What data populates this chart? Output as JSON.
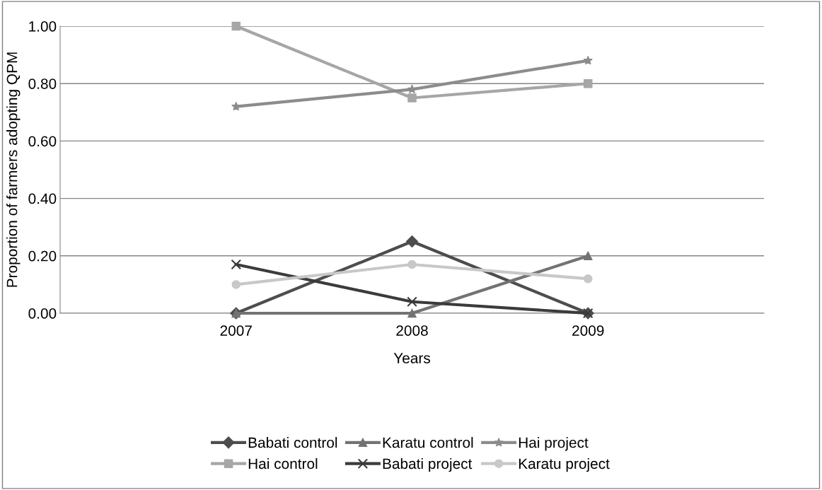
{
  "chart_data": {
    "type": "line",
    "xlabel": "Years",
    "ylabel": "Proportion of farmers adopting QPM",
    "categories": [
      "2007",
      "2008",
      "2009"
    ],
    "ylim": [
      0,
      1
    ],
    "yticks": [
      {
        "value": 0,
        "label": "0.00"
      },
      {
        "value": 0.2,
        "label": "0.20"
      },
      {
        "value": 0.4,
        "label": "0.40"
      },
      {
        "value": 0.6,
        "label": "0.60"
      },
      {
        "value": 0.8,
        "label": "0.80"
      },
      {
        "value": 1.0,
        "label": "1.00"
      }
    ],
    "grid": "y",
    "legend": "bottom",
    "series": [
      {
        "name": "Babati control",
        "color": "#4d4d4d",
        "marker": "diamond",
        "values": [
          0,
          0.25,
          0
        ]
      },
      {
        "name": "Hai control",
        "color": "#a6a6a6",
        "marker": "square",
        "values": [
          1.0,
          0.75,
          0.8
        ]
      },
      {
        "name": "Karatu control",
        "color": "#737373",
        "marker": "triangle",
        "values": [
          0,
          0,
          0.2
        ]
      },
      {
        "name": "Babati project",
        "color": "#3b3b3b",
        "marker": "cross",
        "values": [
          0.17,
          0.04,
          0
        ]
      },
      {
        "name": "Hai project",
        "color": "#8c8c8c",
        "marker": "star",
        "values": [
          0.72,
          0.78,
          0.88
        ]
      },
      {
        "name": "Karatu project",
        "color": "#c8c8c8",
        "marker": "circle",
        "values": [
          0.1,
          0.17,
          0.12
        ]
      }
    ]
  }
}
